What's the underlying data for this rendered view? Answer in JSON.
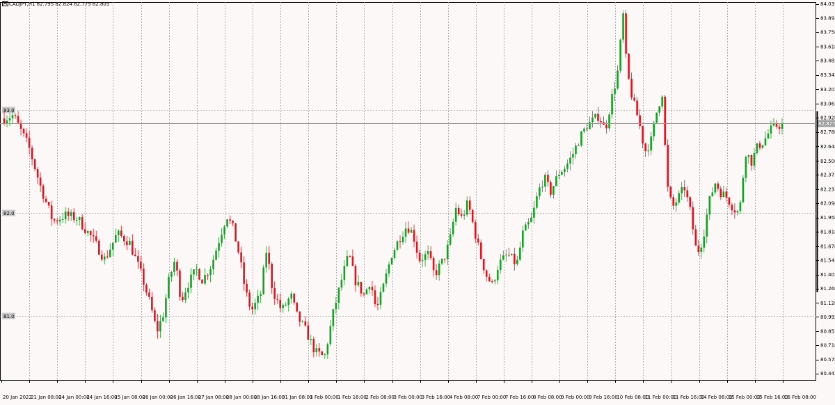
{
  "header": {
    "symbol": "CADJPY,H1",
    "ohlc": "82.795 82.824 82.779 82.805"
  },
  "colors": {
    "background": "#fdf8f8",
    "bull": "#11a322",
    "bear": "#e8101a",
    "grid": "#9a9a9a",
    "axis": "#000000",
    "current_line": "#9a9a9a",
    "level_label_bg": "#c8c8c8"
  },
  "chart_data": {
    "type": "candlestick",
    "title": "CADJPY,H1",
    "xlabel": "",
    "ylabel": "",
    "ylim": [
      80.38,
      84.05
    ],
    "grid": true,
    "y_ticks": [
      "84.033",
      "83.893",
      "83.758",
      "83.618",
      "83.483",
      "83.343",
      "83.203",
      "83.063",
      "82.928",
      "82.788",
      "82.648",
      "82.506",
      "82.373",
      "82.233",
      "82.098",
      "81.958",
      "81.818",
      "81.678",
      "81.543",
      "81.403",
      "81.268",
      "81.128",
      "80.993",
      "80.853",
      "80.718",
      "80.578",
      "80.443"
    ],
    "x_ticks": [
      "20 Jan 2022",
      "21 Jan 08:00",
      "24 Jan 00:00",
      "24 Jan 16:00",
      "25 Jan 08:00",
      "26 Jan 00:00",
      "26 Jan 16:00",
      "27 Jan 08:00",
      "28 Jan 00:00",
      "28 Jan 16:00",
      "31 Jan 08:00",
      "1 Feb 00:00",
      "1 Feb 16:00",
      "2 Feb 08:00",
      "3 Feb 00:00",
      "3 Feb 16:00",
      "4 Feb 08:00",
      "7 Feb 00:00",
      "7 Feb 16:00",
      "8 Feb 08:00",
      "9 Feb 00:00",
      "9 Feb 16:00",
      "10 Feb 08:00",
      "11 Feb 00:00",
      "11 Feb 16:00",
      "14 Feb 08:00",
      "15 Feb 00:00",
      "15 Feb 16:00",
      "16 Feb 08:00"
    ],
    "price_levels": [
      {
        "label": "83.0",
        "value": 83.0
      },
      {
        "label": "82.0",
        "value": 82.0
      },
      {
        "label": "81.0",
        "value": 81.0
      }
    ],
    "current_price": {
      "label": "82.877",
      "value": 82.877
    },
    "path_points": [
      [
        0,
        82.92
      ],
      [
        3,
        82.95
      ],
      [
        8,
        82.65
      ],
      [
        12,
        82.25
      ],
      [
        16,
        81.92
      ],
      [
        20,
        81.98
      ],
      [
        24,
        81.95
      ],
      [
        29,
        81.75
      ],
      [
        33,
        81.55
      ],
      [
        37,
        81.8
      ],
      [
        41,
        81.72
      ],
      [
        45,
        81.4
      ],
      [
        48,
        81.1
      ],
      [
        50,
        80.85
      ],
      [
        52,
        81.0
      ],
      [
        54,
        81.35
      ],
      [
        56,
        81.55
      ],
      [
        58,
        81.15
      ],
      [
        60,
        81.3
      ],
      [
        63,
        81.45
      ],
      [
        65,
        81.35
      ],
      [
        68,
        81.5
      ],
      [
        71,
        81.8
      ],
      [
        73,
        81.98
      ],
      [
        75,
        81.85
      ],
      [
        77,
        81.6
      ],
      [
        79,
        81.25
      ],
      [
        81,
        81.05
      ],
      [
        84,
        81.2
      ],
      [
        86,
        81.65
      ],
      [
        88,
        81.25
      ],
      [
        91,
        81.05
      ],
      [
        94,
        81.2
      ],
      [
        96,
        81.0
      ],
      [
        99,
        80.85
      ],
      [
        102,
        80.65
      ],
      [
        105,
        80.6
      ],
      [
        108,
        81.05
      ],
      [
        111,
        81.4
      ],
      [
        113,
        81.6
      ],
      [
        115,
        81.35
      ],
      [
        118,
        81.2
      ],
      [
        120,
        81.35
      ],
      [
        122,
        81.05
      ],
      [
        124,
        81.25
      ],
      [
        127,
        81.6
      ],
      [
        130,
        81.78
      ],
      [
        132,
        81.88
      ],
      [
        134,
        81.8
      ],
      [
        136,
        81.55
      ],
      [
        139,
        81.6
      ],
      [
        141,
        81.4
      ],
      [
        144,
        81.55
      ],
      [
        146,
        81.72
      ],
      [
        148,
        82.05
      ],
      [
        150,
        81.95
      ],
      [
        152,
        82.1
      ],
      [
        154,
        81.85
      ],
      [
        156,
        81.6
      ],
      [
        158,
        81.4
      ],
      [
        160,
        81.3
      ],
      [
        162,
        81.5
      ],
      [
        165,
        81.6
      ],
      [
        168,
        81.5
      ],
      [
        170,
        81.8
      ],
      [
        173,
        81.95
      ],
      [
        175,
        82.2
      ],
      [
        177,
        82.35
      ],
      [
        179,
        82.2
      ],
      [
        182,
        82.4
      ],
      [
        184,
        82.45
      ],
      [
        186,
        82.55
      ],
      [
        189,
        82.75
      ],
      [
        191,
        82.85
      ],
      [
        193,
        82.9
      ],
      [
        195,
        82.95
      ],
      [
        197,
        82.8
      ],
      [
        199,
        83.1
      ],
      [
        201,
        83.35
      ],
      [
        203,
        83.95
      ],
      [
        204,
        83.4
      ],
      [
        206,
        83.1
      ],
      [
        208,
        82.9
      ],
      [
        210,
        82.6
      ],
      [
        212,
        82.7
      ],
      [
        214,
        83.0
      ],
      [
        216,
        83.2
      ],
      [
        217,
        82.3
      ],
      [
        219,
        82.05
      ],
      [
        221,
        82.15
      ],
      [
        223,
        82.25
      ],
      [
        225,
        82.0
      ],
      [
        227,
        81.6
      ],
      [
        229,
        81.75
      ],
      [
        231,
        82.1
      ],
      [
        233,
        82.3
      ],
      [
        235,
        82.2
      ],
      [
        237,
        82.15
      ],
      [
        239,
        82.05
      ],
      [
        241,
        82.0
      ],
      [
        243,
        82.6
      ],
      [
        245,
        82.5
      ],
      [
        247,
        82.65
      ],
      [
        249,
        82.7
      ],
      [
        251,
        82.8
      ],
      [
        253,
        82.85
      ],
      [
        255,
        82.86
      ]
    ]
  }
}
